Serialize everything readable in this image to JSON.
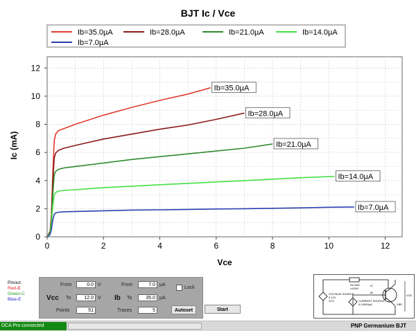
{
  "chart_data": {
    "type": "line",
    "title": "BJT Ic / Vce",
    "xlabel": "Vce",
    "ylabel": "Ic (mA)",
    "xlim": [
      0,
      12.6
    ],
    "ylim": [
      0,
      12.8
    ],
    "xticks": [
      "0",
      "2",
      "4",
      "6",
      "8",
      "10",
      "12"
    ],
    "yticks": [
      "0",
      "2",
      "4",
      "6",
      "8",
      "10",
      "12"
    ],
    "grid": true,
    "legend_position": "top",
    "series": [
      {
        "name": "Ib=35.0µA",
        "color": "#e23b2e",
        "label": "Ib=35.0µA",
        "x": [
          0,
          0.1,
          0.15,
          0.2,
          0.25,
          0.3,
          0.4,
          0.6,
          1,
          2,
          3,
          4,
          5,
          5.8
        ],
        "y": [
          0,
          0.4,
          1.5,
          4.5,
          6.8,
          7.3,
          7.55,
          7.7,
          8.0,
          8.65,
          9.2,
          9.7,
          10.15,
          10.6
        ]
      },
      {
        "name": "Ib=28.0µA",
        "color": "#8b1a1a",
        "label": "Ib=28.0µA",
        "x": [
          0,
          0.1,
          0.15,
          0.2,
          0.25,
          0.3,
          0.4,
          0.6,
          1,
          2,
          3,
          4,
          5,
          6,
          7
        ],
        "y": [
          0,
          0.35,
          1.3,
          3.8,
          5.6,
          5.95,
          6.15,
          6.3,
          6.5,
          6.95,
          7.3,
          7.65,
          7.95,
          8.35,
          8.8
        ]
      },
      {
        "name": "Ib=21.0µA",
        "color": "#2e8b2e",
        "label": "Ib=21.0µA",
        "x": [
          0,
          0.1,
          0.15,
          0.2,
          0.25,
          0.3,
          0.4,
          0.6,
          1,
          2,
          3,
          4,
          5,
          6,
          7,
          8
        ],
        "y": [
          0,
          0.3,
          1.1,
          3.0,
          4.4,
          4.65,
          4.8,
          4.9,
          5.0,
          5.25,
          5.5,
          5.7,
          5.9,
          6.1,
          6.3,
          6.6
        ]
      },
      {
        "name": "Ib=14.0µA",
        "color": "#44e044",
        "label": "Ib=14.0µA",
        "x": [
          0,
          0.1,
          0.15,
          0.2,
          0.25,
          0.3,
          0.4,
          0.6,
          1,
          2,
          3,
          4,
          5,
          6,
          7,
          8,
          9,
          10.2
        ],
        "y": [
          0,
          0.25,
          0.9,
          2.2,
          3.0,
          3.15,
          3.25,
          3.3,
          3.35,
          3.5,
          3.6,
          3.7,
          3.8,
          3.9,
          4.0,
          4.1,
          4.2,
          4.3
        ]
      },
      {
        "name": "Ib=7.0µA",
        "color": "#2a3fb0",
        "label": "Ib=7.0µA",
        "x": [
          0,
          0.1,
          0.15,
          0.2,
          0.25,
          0.3,
          0.4,
          0.6,
          1,
          2,
          3,
          4,
          5,
          6,
          7,
          8,
          9,
          10,
          10.9
        ],
        "y": [
          0,
          0.15,
          0.5,
          1.2,
          1.6,
          1.7,
          1.75,
          1.78,
          1.8,
          1.85,
          1.9,
          1.92,
          1.95,
          1.98,
          2.0,
          2.03,
          2.06,
          2.1,
          2.12
        ]
      }
    ]
  },
  "pinout": {
    "title": "Pinout:",
    "items": [
      {
        "text": "Red-B",
        "color": "#d22"
      },
      {
        "text": "Green-C",
        "color": "#1a9a1a"
      },
      {
        "text": "Blue-E",
        "color": "#22c"
      }
    ]
  },
  "controls": {
    "vcc_label": "Vcc",
    "ib_label": "Ib",
    "from_label": "From",
    "to_label": "To",
    "points_label": "Points",
    "traces_label": "Traces",
    "vcc_from": "0.0",
    "vcc_to": "12.0",
    "vcc_unit": "V",
    "ib_from": "7.0",
    "ib_to": "35.0",
    "ib_unit": "µA",
    "points": "51",
    "traces": "5",
    "lock_label": "Lock",
    "autoset_label": "Autoset",
    "start_label": "Start"
  },
  "circuit": {
    "rload": "RLOAD",
    "rload_val": "≥100Ω",
    "ic": "IC",
    "ib": "IB",
    "vcc": "VCC",
    "voltage_source": "VOLTAGE SOURCE",
    "voltage_range": "0-12V",
    "current_source": "CURRENT SOURCE",
    "current_range": "0-10000µA",
    "vbe": "VBE",
    "vce": "VCE"
  },
  "status": {
    "connection": "DCA Pro connected",
    "device": "PNP Germanium BJT"
  }
}
